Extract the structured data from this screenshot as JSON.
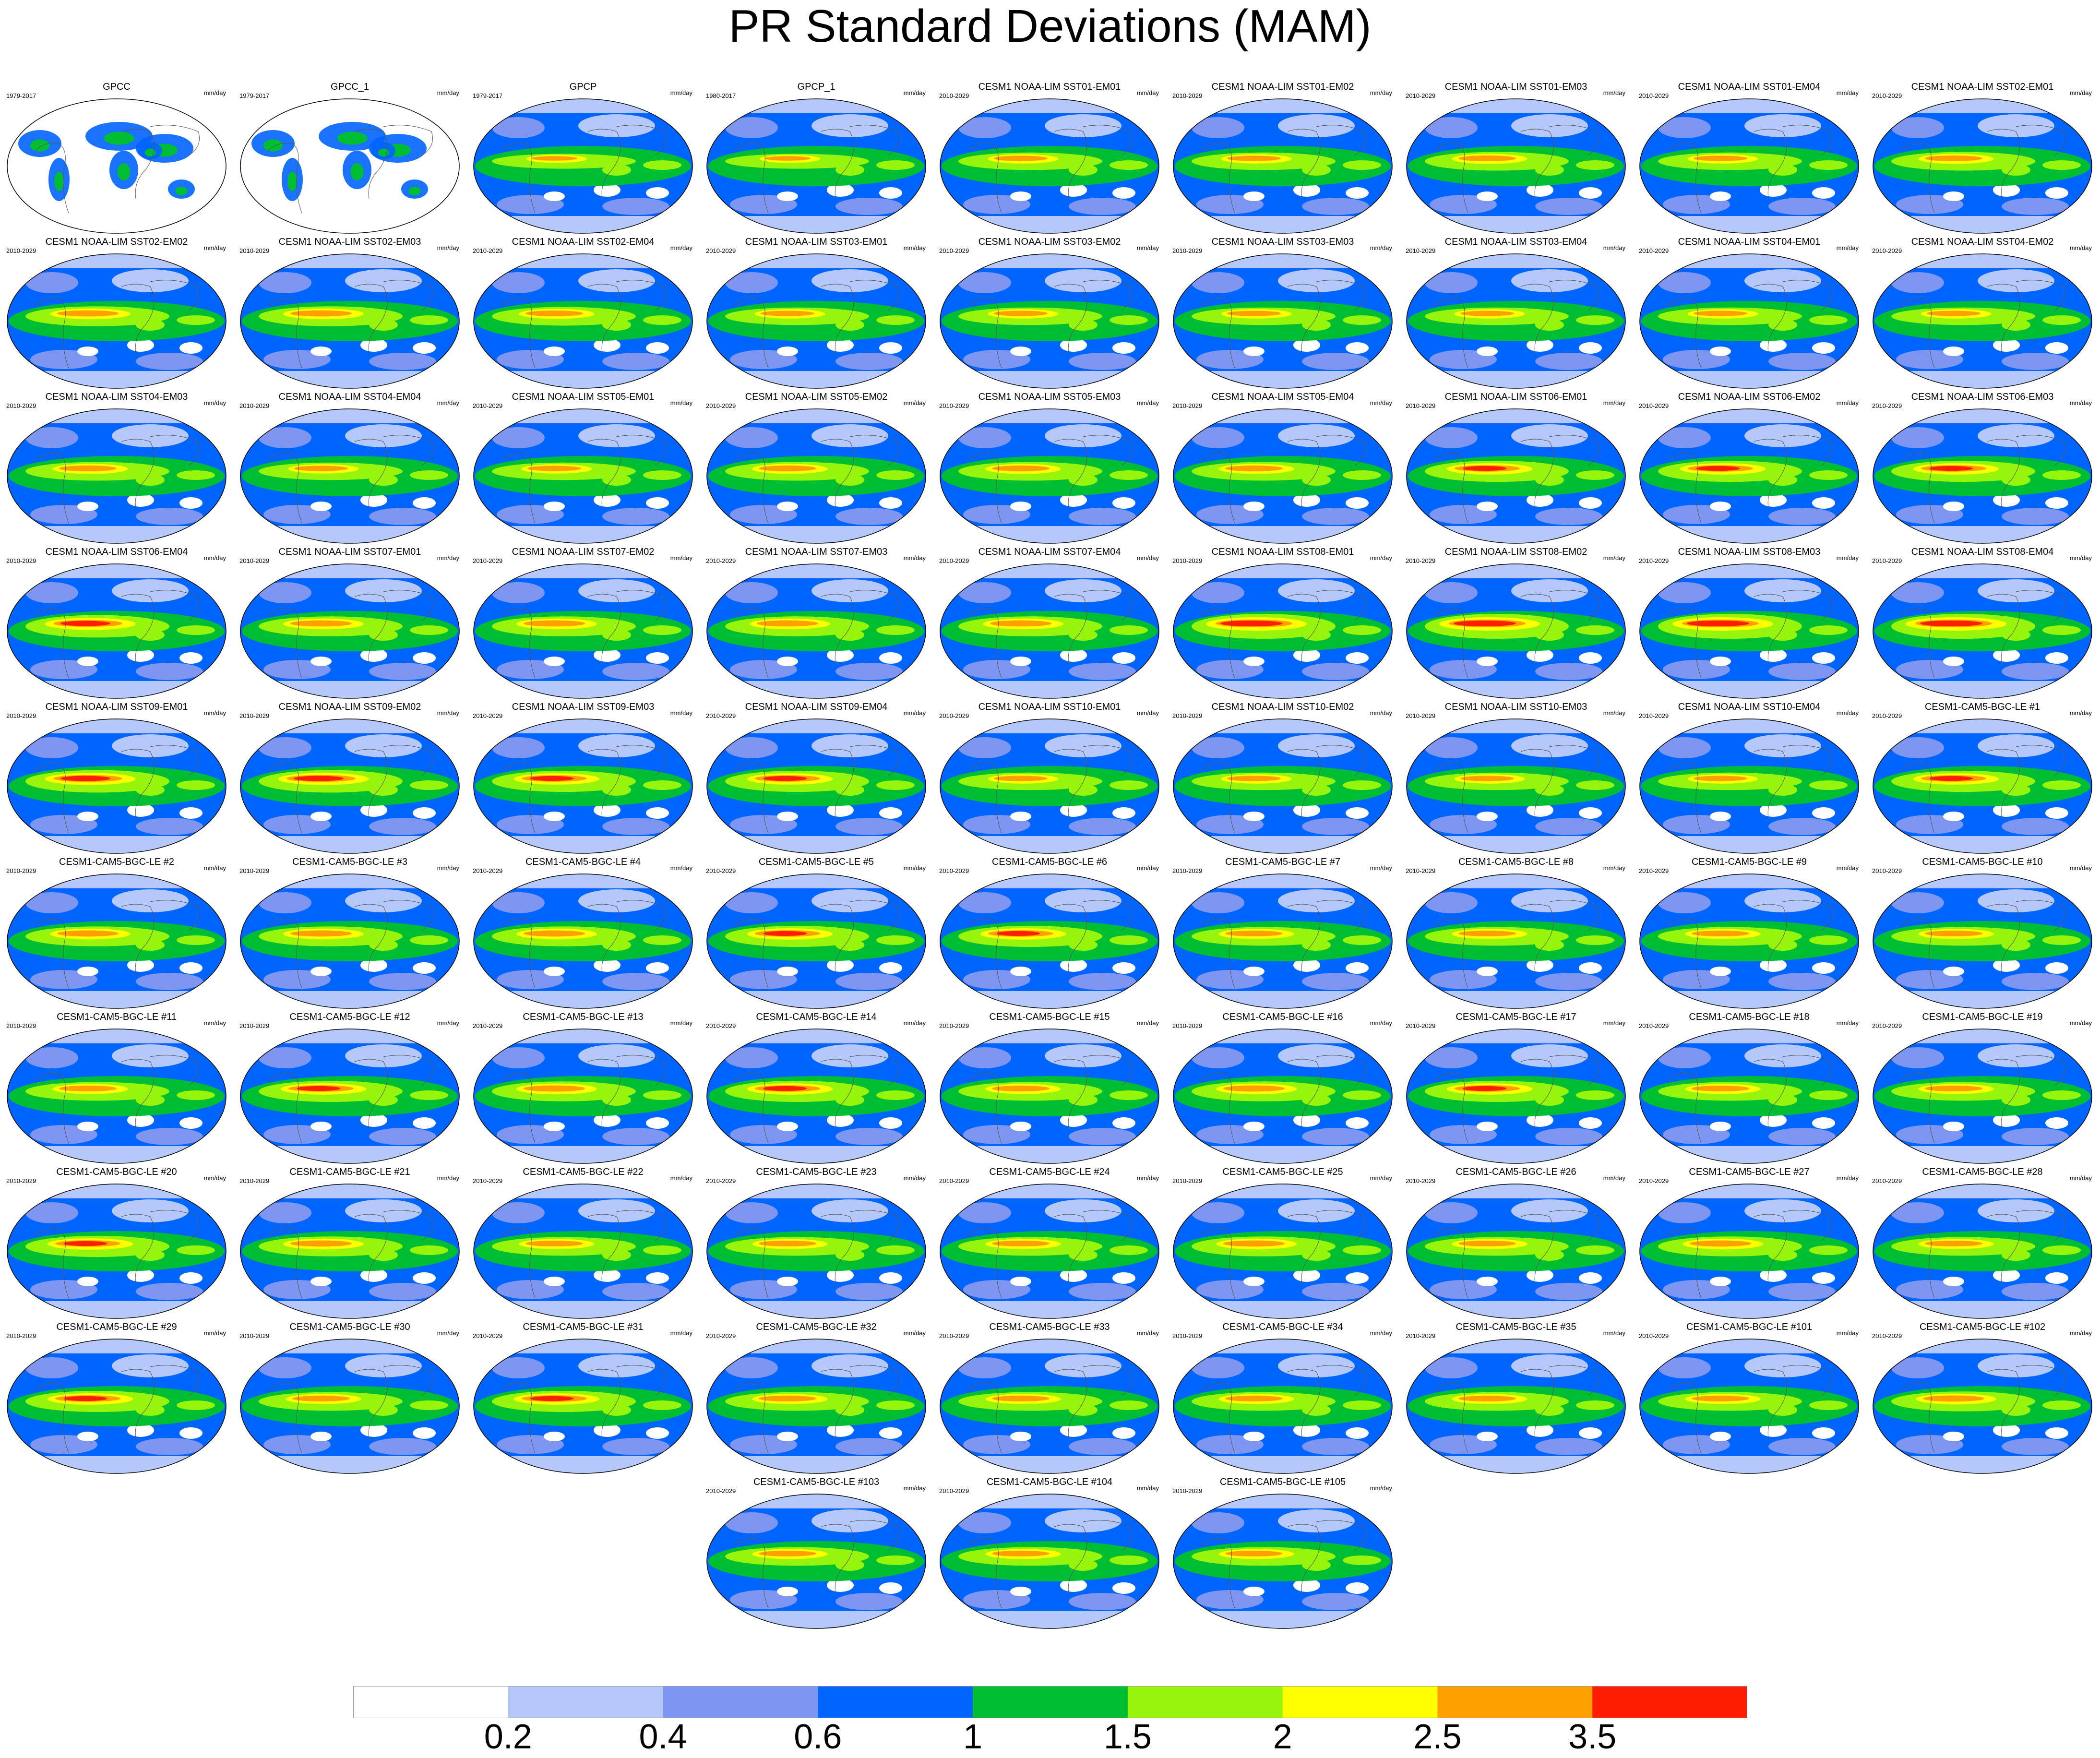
{
  "title": "PR Standard Deviations (MAM)",
  "units": "mm/day",
  "colorbar": {
    "colors": [
      "#ffffff",
      "#b4c8fa",
      "#7c96f2",
      "#0064ff",
      "#00be32",
      "#96f50a",
      "#ffff00",
      "#ffa000",
      "#ff1e00"
    ],
    "labels": [
      "0.2",
      "0.4",
      "0.6",
      "1",
      "1.5",
      "2",
      "2.5",
      "3.5"
    ]
  },
  "panels": [
    {
      "name": "GPCC",
      "period": "1979-2017",
      "intensity": 0.25
    },
    {
      "name": "GPCC_1",
      "period": "1979-2017",
      "intensity": 0.25
    },
    {
      "name": "GPCP",
      "period": "1979-2017",
      "intensity": 0.6
    },
    {
      "name": "GPCP_1",
      "period": "1980-2017",
      "intensity": 0.6
    },
    {
      "name": "CESM1 NOAA-LIM SST01-EM01",
      "period": "2010-2029",
      "intensity": 0.7
    },
    {
      "name": "CESM1 NOAA-LIM SST01-EM02",
      "period": "2010-2029",
      "intensity": 0.7
    },
    {
      "name": "CESM1 NOAA-LIM SST01-EM03",
      "period": "2010-2029",
      "intensity": 0.75
    },
    {
      "name": "CESM1 NOAA-LIM SST01-EM04",
      "period": "2010-2029",
      "intensity": 0.7
    },
    {
      "name": "CESM1 NOAA-LIM SST02-EM01",
      "period": "2010-2029",
      "intensity": 0.75
    },
    {
      "name": "CESM1 NOAA-LIM SST02-EM02",
      "period": "2010-2029",
      "intensity": 0.8
    },
    {
      "name": "CESM1 NOAA-LIM SST02-EM03",
      "period": "2010-2029",
      "intensity": 0.8
    },
    {
      "name": "CESM1 NOAA-LIM SST02-EM04",
      "period": "2010-2029",
      "intensity": 0.75
    },
    {
      "name": "CESM1 NOAA-LIM SST03-EM01",
      "period": "2010-2029",
      "intensity": 0.7
    },
    {
      "name": "CESM1 NOAA-LIM SST03-EM02",
      "period": "2010-2029",
      "intensity": 0.7
    },
    {
      "name": "CESM1 NOAA-LIM SST03-EM03",
      "period": "2010-2029",
      "intensity": 0.7
    },
    {
      "name": "CESM1 NOAA-LIM SST03-EM04",
      "period": "2010-2029",
      "intensity": 0.7
    },
    {
      "name": "CESM1 NOAA-LIM SST04-EM01",
      "period": "2010-2029",
      "intensity": 0.7
    },
    {
      "name": "CESM1 NOAA-LIM SST04-EM02",
      "period": "2010-2029",
      "intensity": 0.7
    },
    {
      "name": "CESM1 NOAA-LIM SST04-EM03",
      "period": "2010-2029",
      "intensity": 0.75
    },
    {
      "name": "CESM1 NOAA-LIM SST04-EM04",
      "period": "2010-2029",
      "intensity": 0.7
    },
    {
      "name": "CESM1 NOAA-LIM SST05-EM01",
      "period": "2010-2029",
      "intensity": 0.7
    },
    {
      "name": "CESM1 NOAA-LIM SST05-EM02",
      "period": "2010-2029",
      "intensity": 0.75
    },
    {
      "name": "CESM1 NOAA-LIM SST05-EM03",
      "period": "2010-2029",
      "intensity": 0.75
    },
    {
      "name": "CESM1 NOAA-LIM SST05-EM04",
      "period": "2010-2029",
      "intensity": 0.75
    },
    {
      "name": "CESM1 NOAA-LIM SST06-EM01",
      "period": "2010-2029",
      "intensity": 0.85
    },
    {
      "name": "CESM1 NOAA-LIM SST06-EM02",
      "period": "2010-2029",
      "intensity": 0.85
    },
    {
      "name": "CESM1 NOAA-LIM SST06-EM03",
      "period": "2010-2029",
      "intensity": 0.85
    },
    {
      "name": "CESM1 NOAA-LIM SST06-EM04",
      "period": "2010-2029",
      "intensity": 0.9
    },
    {
      "name": "CESM1 NOAA-LIM SST07-EM01",
      "period": "2010-2029",
      "intensity": 0.8
    },
    {
      "name": "CESM1 NOAA-LIM SST07-EM02",
      "period": "2010-2029",
      "intensity": 0.8
    },
    {
      "name": "CESM1 NOAA-LIM SST07-EM03",
      "period": "2010-2029",
      "intensity": 0.8
    },
    {
      "name": "CESM1 NOAA-LIM SST07-EM04",
      "period": "2010-2029",
      "intensity": 0.8
    },
    {
      "name": "CESM1 NOAA-LIM SST08-EM01",
      "period": "2010-2029",
      "intensity": 1.0
    },
    {
      "name": "CESM1 NOAA-LIM SST08-EM02",
      "period": "2010-2029",
      "intensity": 1.0
    },
    {
      "name": "CESM1 NOAA-LIM SST08-EM03",
      "period": "2010-2029",
      "intensity": 1.0
    },
    {
      "name": "CESM1 NOAA-LIM SST08-EM04",
      "period": "2010-2029",
      "intensity": 1.0
    },
    {
      "name": "CESM1 NOAA-LIM SST09-EM01",
      "period": "2010-2029",
      "intensity": 0.9
    },
    {
      "name": "CESM1 NOAA-LIM SST09-EM02",
      "period": "2010-2029",
      "intensity": 0.9
    },
    {
      "name": "CESM1 NOAA-LIM SST09-EM03",
      "period": "2010-2029",
      "intensity": 0.85
    },
    {
      "name": "CESM1 NOAA-LIM SST09-EM04",
      "period": "2010-2029",
      "intensity": 0.85
    },
    {
      "name": "CESM1 NOAA-LIM SST10-EM01",
      "period": "2010-2029",
      "intensity": 0.7
    },
    {
      "name": "CESM1 NOAA-LIM SST10-EM02",
      "period": "2010-2029",
      "intensity": 0.7
    },
    {
      "name": "CESM1 NOAA-LIM SST10-EM03",
      "period": "2010-2029",
      "intensity": 0.7
    },
    {
      "name": "CESM1 NOAA-LIM SST10-EM04",
      "period": "2010-2029",
      "intensity": 0.7
    },
    {
      "name": "CESM1-CAM5-BGC-LE #1",
      "period": "2010-2029",
      "intensity": 0.85
    },
    {
      "name": "CESM1-CAM5-BGC-LE #2",
      "period": "2010-2029",
      "intensity": 0.8
    },
    {
      "name": "CESM1-CAM5-BGC-LE #3",
      "period": "2010-2029",
      "intensity": 0.8
    },
    {
      "name": "CESM1-CAM5-BGC-LE #4",
      "period": "2010-2029",
      "intensity": 0.8
    },
    {
      "name": "CESM1-CAM5-BGC-LE #5",
      "period": "2010-2029",
      "intensity": 0.85
    },
    {
      "name": "CESM1-CAM5-BGC-LE #6",
      "period": "2010-2029",
      "intensity": 0.85
    },
    {
      "name": "CESM1-CAM5-BGC-LE #7",
      "period": "2010-2029",
      "intensity": 0.75
    },
    {
      "name": "CESM1-CAM5-BGC-LE #8",
      "period": "2010-2029",
      "intensity": 0.75
    },
    {
      "name": "CESM1-CAM5-BGC-LE #9",
      "period": "2010-2029",
      "intensity": 0.75
    },
    {
      "name": "CESM1-CAM5-BGC-LE #10",
      "period": "2010-2029",
      "intensity": 0.75
    },
    {
      "name": "CESM1-CAM5-BGC-LE #11",
      "period": "2010-2029",
      "intensity": 0.75
    },
    {
      "name": "CESM1-CAM5-BGC-LE #12",
      "period": "2010-2029",
      "intensity": 0.85
    },
    {
      "name": "CESM1-CAM5-BGC-LE #13",
      "period": "2010-2029",
      "intensity": 0.8
    },
    {
      "name": "CESM1-CAM5-BGC-LE #14",
      "period": "2010-2029",
      "intensity": 0.85
    },
    {
      "name": "CESM1-CAM5-BGC-LE #15",
      "period": "2010-2029",
      "intensity": 0.75
    },
    {
      "name": "CESM1-CAM5-BGC-LE #16",
      "period": "2010-2029",
      "intensity": 0.8
    },
    {
      "name": "CESM1-CAM5-BGC-LE #17",
      "period": "2010-2029",
      "intensity": 0.85
    },
    {
      "name": "CESM1-CAM5-BGC-LE #18",
      "period": "2010-2029",
      "intensity": 0.75
    },
    {
      "name": "CESM1-CAM5-BGC-LE #19",
      "period": "2010-2029",
      "intensity": 0.75
    },
    {
      "name": "CESM1-CAM5-BGC-LE #20",
      "period": "2010-2029",
      "intensity": 0.85
    },
    {
      "name": "CESM1-CAM5-BGC-LE #21",
      "period": "2010-2029",
      "intensity": 0.8
    },
    {
      "name": "CESM1-CAM5-BGC-LE #22",
      "period": "2010-2029",
      "intensity": 0.75
    },
    {
      "name": "CESM1-CAM5-BGC-LE #23",
      "period": "2010-2029",
      "intensity": 0.75
    },
    {
      "name": "CESM1-CAM5-BGC-LE #24",
      "period": "2010-2029",
      "intensity": 0.75
    },
    {
      "name": "CESM1-CAM5-BGC-LE #25",
      "period": "2010-2029",
      "intensity": 0.8
    },
    {
      "name": "CESM1-CAM5-BGC-LE #26",
      "period": "2010-2029",
      "intensity": 0.75
    },
    {
      "name": "CESM1-CAM5-BGC-LE #27",
      "period": "2010-2029",
      "intensity": 0.8
    },
    {
      "name": "CESM1-CAM5-BGC-LE #28",
      "period": "2010-2029",
      "intensity": 0.75
    },
    {
      "name": "CESM1-CAM5-BGC-LE #29",
      "period": "2010-2029",
      "intensity": 0.85
    },
    {
      "name": "CESM1-CAM5-BGC-LE #30",
      "period": "2010-2029",
      "intensity": 0.75
    },
    {
      "name": "CESM1-CAM5-BGC-LE #31",
      "period": "2010-2029",
      "intensity": 0.85
    },
    {
      "name": "CESM1-CAM5-BGC-LE #32",
      "period": "2010-2029",
      "intensity": 0.75
    },
    {
      "name": "CESM1-CAM5-BGC-LE #33",
      "period": "2010-2029",
      "intensity": 0.75
    },
    {
      "name": "CESM1-CAM5-BGC-LE #34",
      "period": "2010-2029",
      "intensity": 0.75
    },
    {
      "name": "CESM1-CAM5-BGC-LE #35",
      "period": "2010-2029",
      "intensity": 0.75
    },
    {
      "name": "CESM1-CAM5-BGC-LE #101",
      "period": "2010-2029",
      "intensity": 0.75
    },
    {
      "name": "CESM1-CAM5-BGC-LE #102",
      "period": "2010-2029",
      "intensity": 0.8
    },
    {
      "name": "CESM1-CAM5-BGC-LE #103",
      "period": "2010-2029",
      "intensity": 0.75
    },
    {
      "name": "CESM1-CAM5-BGC-LE #104",
      "period": "2010-2029",
      "intensity": 0.75
    },
    {
      "name": "CESM1-CAM5-BGC-LE #105",
      "period": "2010-2029",
      "intensity": 0.75
    }
  ]
}
